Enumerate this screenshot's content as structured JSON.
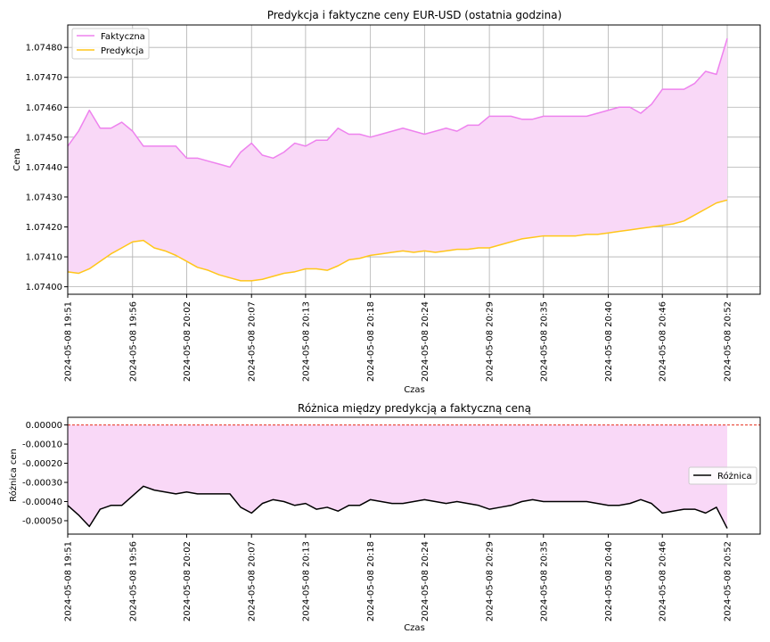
{
  "chart_data": [
    {
      "type": "line",
      "title": "Predykcja i faktyczne ceny EUR-USD (ostatnia godzina)",
      "xlabel": "Czas",
      "ylabel": "Cena",
      "ylim": [
        1.073975,
        1.074875
      ],
      "yticks": [
        "1.07400",
        "1.07410",
        "1.07420",
        "1.07430",
        "1.07440",
        "1.07450",
        "1.07460",
        "1.07470",
        "1.07480"
      ],
      "ytick_values": [
        1.074,
        1.0741,
        1.0742,
        1.0743,
        1.0744,
        1.0745,
        1.0746,
        1.0747,
        1.0748
      ],
      "xticks": [
        "2024-05-08 19:51",
        "2024-05-08 19:56",
        "2024-05-08 20:02",
        "2024-05-08 20:07",
        "2024-05-08 20:13",
        "2024-05-08 20:18",
        "2024-05-08 20:24",
        "2024-05-08 20:29",
        "2024-05-08 20:35",
        "2024-05-08 20:40",
        "2024-05-08 20:46",
        "2024-05-08 20:52"
      ],
      "grid": true,
      "legend_position": "top-left",
      "fill_between": {
        "color": "#f9d8f7"
      },
      "series": [
        {
          "name": "Faktyczna",
          "color": "#ee82ee",
          "values": [
            1.07447,
            1.07452,
            1.07459,
            1.07453,
            1.07453,
            1.07455,
            1.07452,
            1.07447,
            1.07447,
            1.07447,
            1.07447,
            1.07443,
            1.07443,
            1.07442,
            1.07441,
            1.0744,
            1.07445,
            1.07448,
            1.07444,
            1.07443,
            1.07445,
            1.07448,
            1.07447,
            1.07449,
            1.07449,
            1.07453,
            1.07451,
            1.07451,
            1.0745,
            1.07451,
            1.07452,
            1.07453,
            1.07452,
            1.07451,
            1.07452,
            1.07453,
            1.07452,
            1.07454,
            1.07454,
            1.07457,
            1.07457,
            1.07457,
            1.07456,
            1.07456,
            1.07457,
            1.07457,
            1.07457,
            1.07457,
            1.07457,
            1.07458,
            1.07459,
            1.0746,
            1.0746,
            1.07458,
            1.07461,
            1.07466,
            1.07466,
            1.07466,
            1.07468,
            1.07472,
            1.07471,
            1.07483
          ]
        },
        {
          "name": "Predykcja",
          "color": "#ffc61a",
          "values": [
            1.07405,
            1.074045,
            1.07406,
            1.074085,
            1.07411,
            1.07413,
            1.07415,
            1.074155,
            1.07413,
            1.07412,
            1.074105,
            1.074085,
            1.074065,
            1.074055,
            1.07404,
            1.07403,
            1.07402,
            1.07402,
            1.074025,
            1.074035,
            1.074045,
            1.07405,
            1.07406,
            1.07406,
            1.074055,
            1.07407,
            1.07409,
            1.074095,
            1.074105,
            1.07411,
            1.074115,
            1.07412,
            1.074115,
            1.07412,
            1.074115,
            1.07412,
            1.074125,
            1.074125,
            1.07413,
            1.07413,
            1.07414,
            1.07415,
            1.07416,
            1.074165,
            1.07417,
            1.07417,
            1.07417,
            1.07417,
            1.074175,
            1.074175,
            1.07418,
            1.074185,
            1.07419,
            1.074195,
            1.0742,
            1.074205,
            1.07421,
            1.07422,
            1.07424,
            1.07426,
            1.07428,
            1.07429
          ]
        }
      ]
    },
    {
      "type": "line",
      "title": "Różnica między predykcją a faktyczną ceną",
      "xlabel": "Czas",
      "ylabel": "Różnica cen",
      "ylim": [
        -0.00057,
        4e-05
      ],
      "yticks": [
        "0.00000",
        "-0.00010",
        "-0.00020",
        "-0.00030",
        "-0.00040",
        "-0.00050"
      ],
      "ytick_values": [
        0,
        -0.0001,
        -0.0002,
        -0.0003,
        -0.0004,
        -0.0005
      ],
      "xticks": [
        "2024-05-08 19:51",
        "2024-05-08 19:56",
        "2024-05-08 20:02",
        "2024-05-08 20:07",
        "2024-05-08 20:13",
        "2024-05-08 20:18",
        "2024-05-08 20:24",
        "2024-05-08 20:29",
        "2024-05-08 20:35",
        "2024-05-08 20:40",
        "2024-05-08 20:46",
        "2024-05-08 20:52"
      ],
      "grid": false,
      "legend_position": "center-right",
      "zero_line": {
        "value": 0,
        "color": "#e8311f",
        "style": "dashed"
      },
      "fill_between": {
        "color": "#f9d8f7"
      },
      "series": [
        {
          "name": "Różnica",
          "color": "#000000",
          "values": [
            -0.00042,
            -0.00047,
            -0.00053,
            -0.00044,
            -0.00042,
            -0.00042,
            -0.00037,
            -0.00032,
            -0.00034,
            -0.00035,
            -0.00036,
            -0.00035,
            -0.00036,
            -0.00036,
            -0.00036,
            -0.00036,
            -0.00043,
            -0.00046,
            -0.00041,
            -0.00039,
            -0.0004,
            -0.00042,
            -0.00041,
            -0.00044,
            -0.00043,
            -0.00045,
            -0.00042,
            -0.00042,
            -0.00039,
            -0.0004,
            -0.00041,
            -0.00041,
            -0.0004,
            -0.00039,
            -0.0004,
            -0.00041,
            -0.0004,
            -0.00041,
            -0.00042,
            -0.00044,
            -0.00043,
            -0.00042,
            -0.0004,
            -0.00039,
            -0.0004,
            -0.0004,
            -0.0004,
            -0.0004,
            -0.0004,
            -0.00041,
            -0.00042,
            -0.00042,
            -0.00041,
            -0.00039,
            -0.00041,
            -0.00046,
            -0.00045,
            -0.00044,
            -0.00044,
            -0.00046,
            -0.00043,
            -0.00054
          ]
        }
      ]
    }
  ]
}
